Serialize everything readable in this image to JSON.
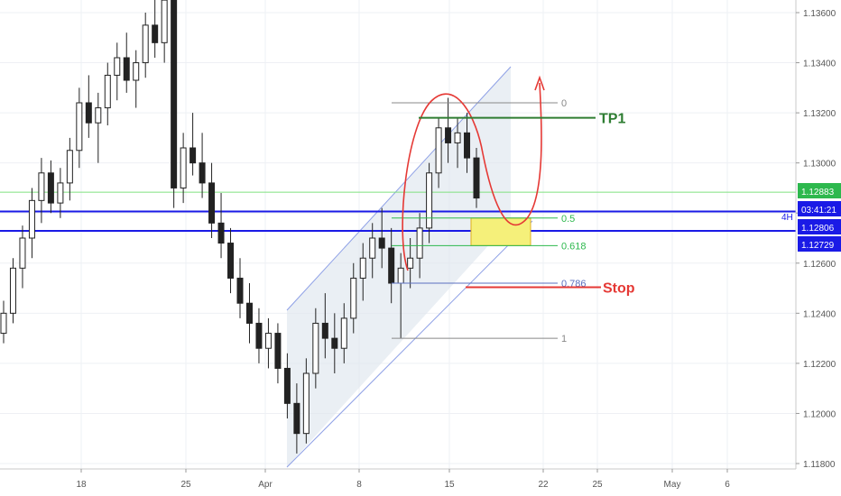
{
  "chart_data": {
    "type": "candlestick",
    "y_ticks": [
      "1.11800",
      "1.12000",
      "1.12200",
      "1.12400",
      "1.12600",
      "1.12800",
      "1.13000",
      "1.13200",
      "1.13400",
      "1.13600"
    ],
    "x_ticks": [
      "18",
      "25",
      "Apr",
      "8",
      "15",
      "22",
      "25",
      "May",
      "6"
    ],
    "ylim": [
      1.1178,
      1.137
    ],
    "grid": true,
    "price_badges": [
      {
        "text": "1.12883",
        "color": "#2db84d"
      },
      {
        "text": "03:41:21",
        "color": "#1a1ae6"
      },
      {
        "text": "1.12806",
        "color": "#1a1ae6"
      },
      {
        "text": "1.12729",
        "color": "#1a1ae6"
      }
    ],
    "timeframe_label": "4H",
    "fib_levels": [
      {
        "label": "0",
        "value": 1.1324,
        "color": "#888888"
      },
      {
        "label": "0.5",
        "value": 1.1278,
        "color": "#2db84d"
      },
      {
        "label": "0.618",
        "value": 1.1267,
        "color": "#2db84d"
      },
      {
        "label": "0.786",
        "value": 1.1252,
        "color": "#5a6fbf"
      },
      {
        "label": "1",
        "value": 1.123,
        "color": "#888888"
      }
    ],
    "horizontal_lines": [
      {
        "value": 1.12883,
        "color": "#7fe07f"
      },
      {
        "value": 1.12806,
        "color": "#1a1ae6"
      },
      {
        "value": 1.12729,
        "color": "#1a1ae6"
      }
    ],
    "annotations": [
      {
        "text": "TP1",
        "value": 1.1318,
        "color": "#2e7d32"
      },
      {
        "text": "Stop",
        "value": 1.125,
        "color": "#e53935"
      }
    ],
    "candles": [
      [
        1.1232,
        1.1245,
        1.1228,
        1.124
      ],
      [
        1.124,
        1.1262,
        1.1236,
        1.1258
      ],
      [
        1.1258,
        1.1275,
        1.125,
        1.127
      ],
      [
        1.127,
        1.129,
        1.1262,
        1.1285
      ],
      [
        1.1285,
        1.1302,
        1.1276,
        1.1296
      ],
      [
        1.1296,
        1.1301,
        1.128,
        1.1284
      ],
      [
        1.1284,
        1.1298,
        1.1278,
        1.1292
      ],
      [
        1.1292,
        1.131,
        1.1285,
        1.1305
      ],
      [
        1.1305,
        1.133,
        1.1298,
        1.1324
      ],
      [
        1.1324,
        1.1335,
        1.131,
        1.1316
      ],
      [
        1.1316,
        1.1328,
        1.13,
        1.1322
      ],
      [
        1.1322,
        1.134,
        1.1315,
        1.1335
      ],
      [
        1.1335,
        1.1348,
        1.1325,
        1.1342
      ],
      [
        1.1342,
        1.1352,
        1.1328,
        1.1333
      ],
      [
        1.1333,
        1.1345,
        1.1322,
        1.134
      ],
      [
        1.134,
        1.136,
        1.1334,
        1.1355
      ],
      [
        1.1355,
        1.1368,
        1.1342,
        1.1348
      ],
      [
        1.1348,
        1.1372,
        1.134,
        1.1365
      ],
      [
        1.1365,
        1.1372,
        1.1282,
        1.129
      ],
      [
        1.129,
        1.1312,
        1.1284,
        1.1306
      ],
      [
        1.1306,
        1.132,
        1.1295,
        1.13
      ],
      [
        1.13,
        1.1312,
        1.1286,
        1.1292
      ],
      [
        1.1292,
        1.13,
        1.127,
        1.1276
      ],
      [
        1.1276,
        1.1288,
        1.1262,
        1.1268
      ],
      [
        1.1268,
        1.1274,
        1.1248,
        1.1254
      ],
      [
        1.1254,
        1.1262,
        1.1238,
        1.1244
      ],
      [
        1.1244,
        1.1252,
        1.1228,
        1.1236
      ],
      [
        1.1236,
        1.1242,
        1.122,
        1.1226
      ],
      [
        1.1226,
        1.1238,
        1.1218,
        1.1232
      ],
      [
        1.1232,
        1.1236,
        1.1212,
        1.1218
      ],
      [
        1.1218,
        1.1224,
        1.1198,
        1.1204
      ],
      [
        1.1204,
        1.1212,
        1.1184,
        1.1192
      ],
      [
        1.1192,
        1.1222,
        1.1188,
        1.1216
      ],
      [
        1.1216,
        1.1242,
        1.121,
        1.1236
      ],
      [
        1.1236,
        1.1248,
        1.1222,
        1.123
      ],
      [
        1.123,
        1.124,
        1.1216,
        1.1226
      ],
      [
        1.1226,
        1.1244,
        1.122,
        1.1238
      ],
      [
        1.1238,
        1.126,
        1.1232,
        1.1254
      ],
      [
        1.1254,
        1.1268,
        1.1245,
        1.1262
      ],
      [
        1.1262,
        1.1276,
        1.1254,
        1.127
      ],
      [
        1.127,
        1.1282,
        1.1258,
        1.1266
      ],
      [
        1.1266,
        1.1274,
        1.1244,
        1.1252
      ],
      [
        1.1252,
        1.1264,
        1.123,
        1.1258
      ],
      [
        1.1258,
        1.127,
        1.125,
        1.1262
      ],
      [
        1.1262,
        1.128,
        1.1254,
        1.1274
      ],
      [
        1.1274,
        1.13,
        1.1268,
        1.1296
      ],
      [
        1.1296,
        1.1318,
        1.129,
        1.1314
      ],
      [
        1.1314,
        1.1326,
        1.13,
        1.1308
      ],
      [
        1.1308,
        1.1318,
        1.1298,
        1.1312
      ],
      [
        1.1312,
        1.132,
        1.1296,
        1.1302
      ],
      [
        1.1302,
        1.1306,
        1.1282,
        1.1286
      ]
    ]
  }
}
